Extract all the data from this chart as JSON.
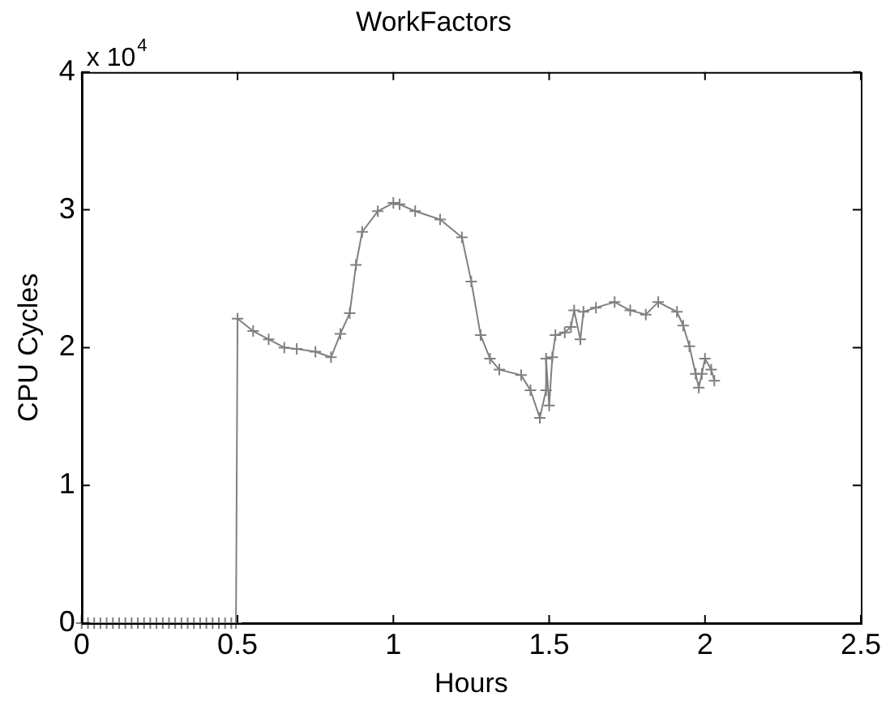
{
  "chart_data": {
    "type": "line",
    "title": "WorkFactors",
    "xlabel": "Hours",
    "ylabel": "CPU Cycles",
    "annotations": [
      "x 10$^{4}$"
    ],
    "x": [
      0,
      0.02,
      0.04,
      0.06,
      0.08,
      0.1,
      0.12,
      0.14,
      0.16,
      0.18,
      0.2,
      0.22,
      0.24,
      0.26,
      0.28,
      0.3,
      0.32,
      0.34,
      0.36,
      0.38,
      0.4,
      0.42,
      0.44,
      0.46,
      0.48,
      0.495,
      0.5,
      0.55,
      0.6,
      0.65,
      0.69,
      0.75,
      0.8,
      0.83,
      0.86,
      0.88,
      0.9,
      0.95,
      1.0,
      1.02,
      1.07,
      1.15,
      1.22,
      1.25,
      1.28,
      1.31,
      1.34,
      1.41,
      1.44,
      1.47,
      1.49,
      1.49,
      1.5,
      1.51,
      1.52,
      1.55,
      1.57,
      1.58,
      1.6,
      1.61,
      1.65,
      1.71,
      1.76,
      1.81,
      1.85,
      1.91,
      1.93,
      1.95,
      1.97,
      1.98,
      1.99,
      2.0,
      2.02,
      2.03
    ],
    "series": [
      {
        "color": "#808080",
        "values": [
          0,
          0,
          0,
          0,
          0,
          0,
          0,
          0,
          0,
          0,
          0,
          0,
          0,
          0,
          0,
          0,
          0,
          0,
          0,
          0,
          0,
          0,
          0,
          0,
          0,
          0,
          2.21,
          2.12,
          2.06,
          2.0,
          1.99,
          1.97,
          1.93,
          2.1,
          2.25,
          2.6,
          2.84,
          2.99,
          3.05,
          3.04,
          2.99,
          2.93,
          2.8,
          2.48,
          2.09,
          1.92,
          1.84,
          1.8,
          1.69,
          1.49,
          1.69,
          1.92,
          1.58,
          1.93,
          2.09,
          2.11,
          2.15,
          2.27,
          2.06,
          2.26,
          2.29,
          2.33,
          2.27,
          2.24,
          2.33,
          2.26,
          2.16,
          2.01,
          1.81,
          1.71,
          1.81,
          1.92,
          1.84,
          1.76
        ]
      }
    ],
    "xlim": [
      0,
      2.5
    ],
    "xticks": [
      0,
      0.5,
      1,
      1.5,
      2,
      2.5
    ],
    "ylim": [
      0,
      4
    ],
    "yticks": [
      0,
      1,
      2,
      3,
      4
    ],
    "grid": false,
    "legend": false,
    "marker": "cross",
    "line_style": "solid"
  }
}
